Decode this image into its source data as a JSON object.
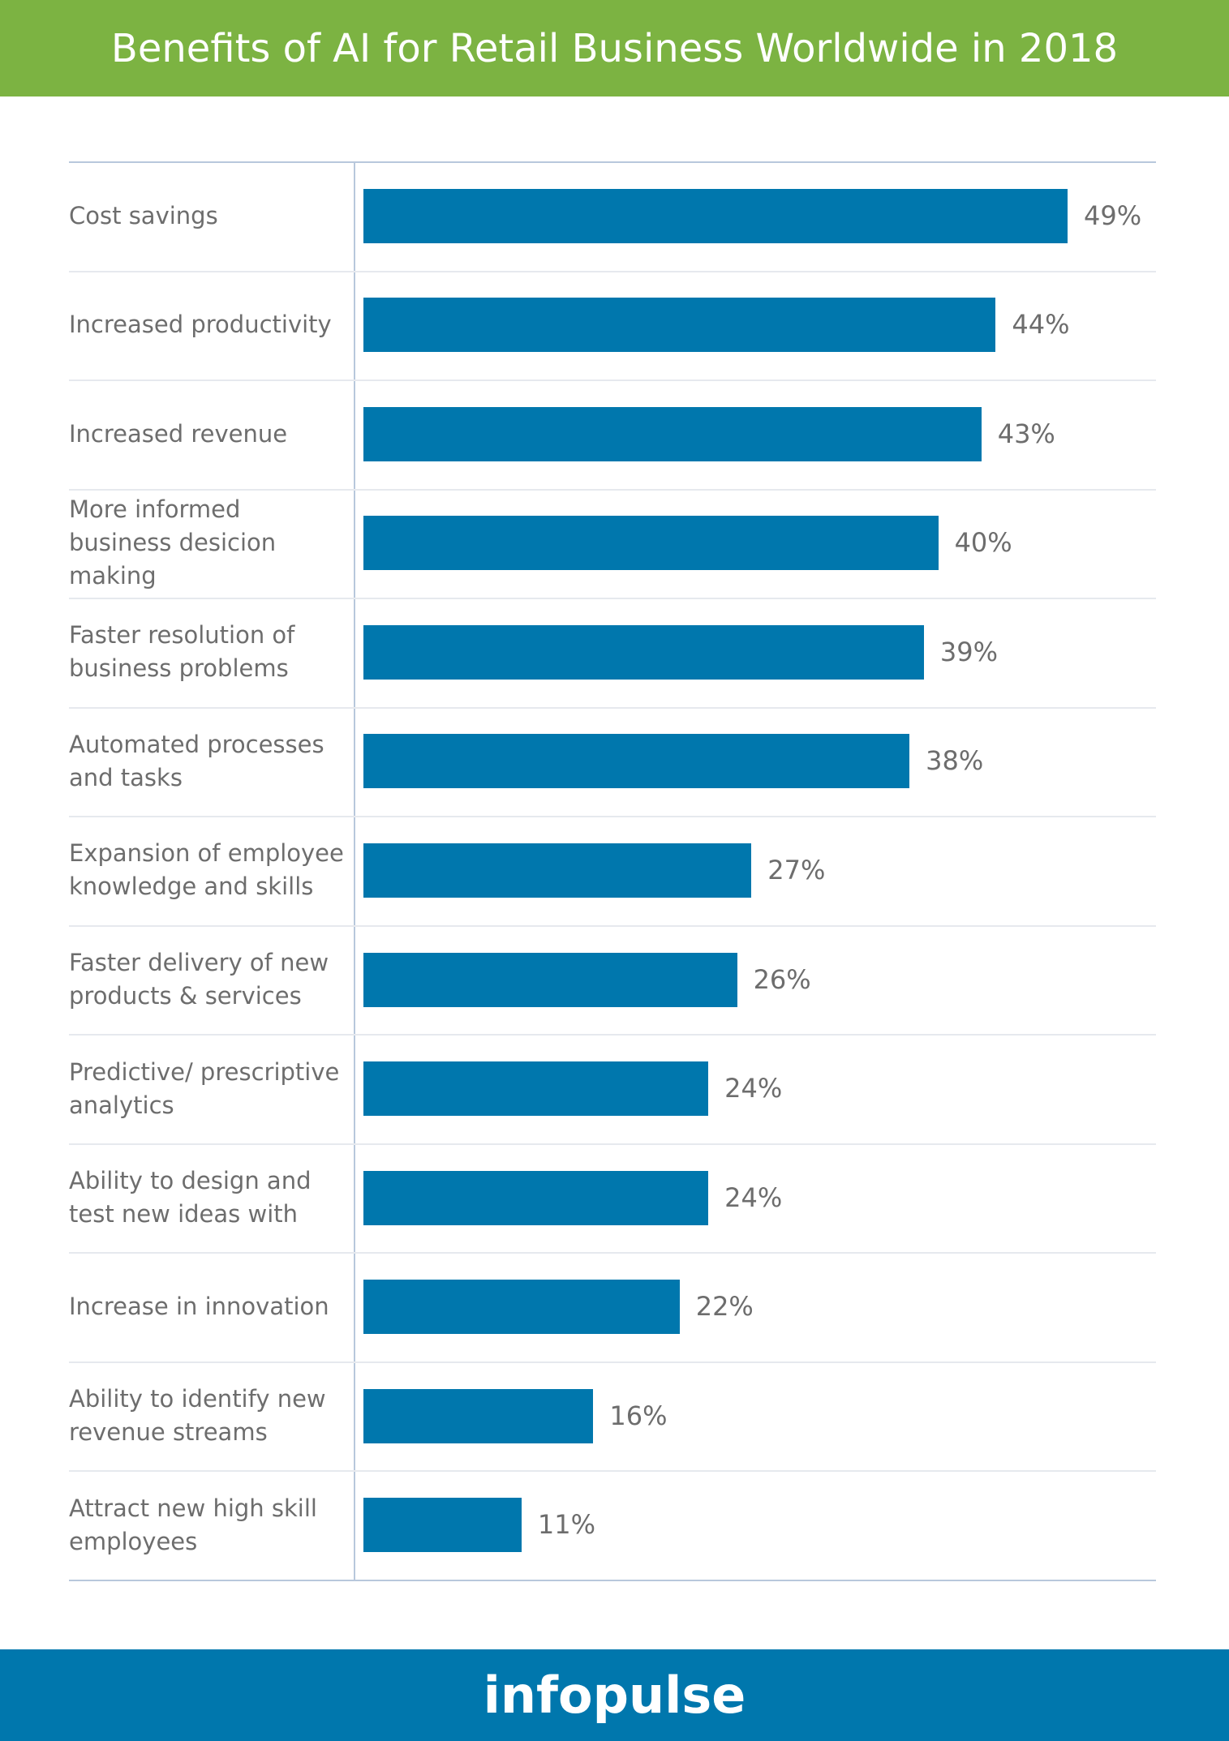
{
  "chart_data": {
    "type": "bar",
    "orientation": "horizontal",
    "title": "Benefits of AI for Retail Business Worldwide in 2018",
    "categories": [
      "Cost savings",
      "Increased productivity",
      "Increased revenue",
      "More informed business desicion making",
      "Faster resolution of business problems",
      "Automated processes and tasks",
      "Expansion of employee knowledge and skills",
      "Faster delivery of new products & services",
      "Predictive/ prescriptive analytics",
      "Ability to design and test new ideas with",
      "Increase in innovation",
      "Ability to identify new revenue streams",
      "Attract new high skill employees"
    ],
    "values": [
      49,
      44,
      43,
      40,
      39,
      38,
      27,
      26,
      24,
      24,
      22,
      16,
      11
    ],
    "value_labels": [
      "49%",
      "44%",
      "43%",
      "40%",
      "39%",
      "38%",
      "27%",
      "26%",
      "24%",
      "24%",
      "22%",
      "16%",
      "11%"
    ],
    "color": "#0077ad"
  },
  "footer": {
    "brand": "infopulse"
  }
}
